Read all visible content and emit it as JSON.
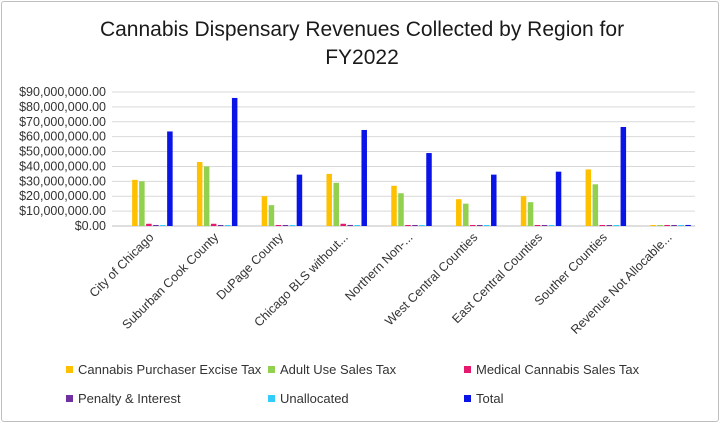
{
  "chart_data": {
    "type": "bar",
    "title": "Cannabis Dispensary Revenues Collected by Region for FY2022",
    "xlabel": "",
    "ylabel": "",
    "ylim": [
      0,
      90000000
    ],
    "yticks": [
      "$0.00",
      "$10,000,000.00",
      "$20,000,000.00",
      "$30,000,000.00",
      "$40,000,000.00",
      "$50,000,000.00",
      "$60,000,000.00",
      "$70,000,000.00",
      "$80,000,000.00",
      "$90,000,000.00"
    ],
    "ytick_values": [
      0,
      10000000,
      20000000,
      30000000,
      40000000,
      50000000,
      60000000,
      70000000,
      80000000,
      90000000
    ],
    "grid": true,
    "legend_position": "bottom",
    "categories": [
      "City of Chicago",
      "Suburban Cook County",
      "DuPage County",
      "Chicago BLS without...",
      "Northern Non-...",
      "West Central Counties",
      "East Central Counties",
      "Souther Counties",
      "Revenue Not Allocable..."
    ],
    "series": [
      {
        "name": "Cannabis Purchaser Excise Tax",
        "color": "#ffc000",
        "values": [
          31000000,
          43000000,
          20000000,
          35000000,
          27000000,
          18000000,
          20000000,
          38000000,
          200000
        ]
      },
      {
        "name": "Adult Use Sales Tax",
        "color": "#92d050",
        "values": [
          30000000,
          40000000,
          14000000,
          29000000,
          22000000,
          15000000,
          16000000,
          28000000,
          200000
        ]
      },
      {
        "name": "Medical Cannabis Sales Tax",
        "color": "#e6196e",
        "values": [
          1500000,
          1500000,
          500000,
          1500000,
          600000,
          400000,
          500000,
          600000,
          100000
        ]
      },
      {
        "name": "Penalty & Interest",
        "color": "#7030a0",
        "values": [
          500000,
          600000,
          300000,
          700000,
          300000,
          200000,
          300000,
          400000,
          50000
        ]
      },
      {
        "name": "Unallocated",
        "color": "#33ccff",
        "values": [
          100000,
          100000,
          50000,
          100000,
          50000,
          50000,
          50000,
          50000,
          50000
        ]
      },
      {
        "name": "Total",
        "color": "#0a14e6",
        "values": [
          63500000,
          86000000,
          34500000,
          64500000,
          49000000,
          34500000,
          36500000,
          66500000,
          700000
        ]
      }
    ]
  }
}
